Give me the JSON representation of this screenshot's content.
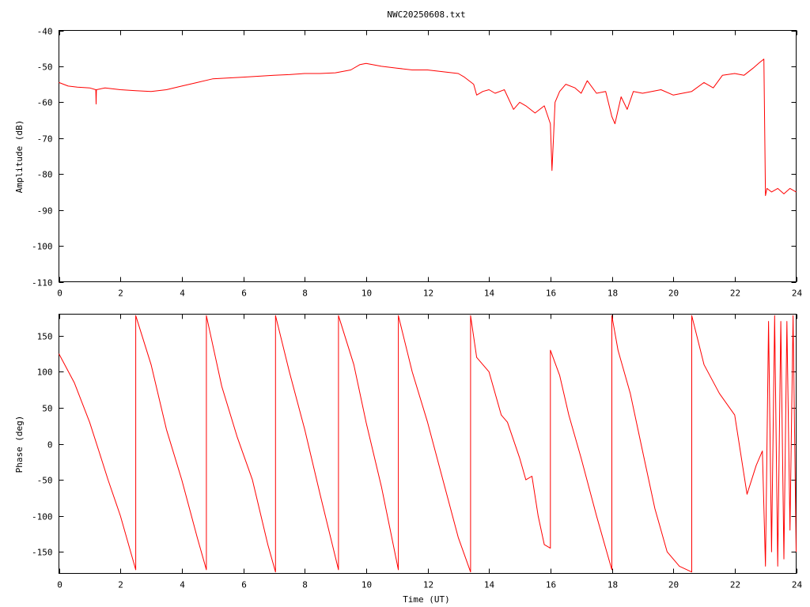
{
  "title": "NWC20250608.txt",
  "colors": {
    "trace": "#ff0000",
    "axes": "#000000",
    "background": "#ffffff"
  },
  "chart_data": [
    {
      "type": "line",
      "title": "NWC20250608.txt",
      "xlabel": "",
      "ylabel": "Amplitude (dB)",
      "xlim": [
        0,
        24
      ],
      "ylim": [
        -110,
        -40
      ],
      "x_ticks": [
        "0",
        "2",
        "4",
        "6",
        "8",
        "10",
        "12",
        "14",
        "16",
        "18",
        "20",
        "22",
        "24"
      ],
      "y_ticks": [
        "-40",
        "-50",
        "-60",
        "-70",
        "-80",
        "-90",
        "-100",
        "-110"
      ],
      "grid": false,
      "series": [
        {
          "x": [
            0,
            0.3,
            0.6,
            1.0,
            1.2,
            1.21,
            1.22,
            1.5,
            2.0,
            2.5,
            3.0,
            3.5,
            4.0,
            4.5,
            5.0,
            6.0,
            7.0,
            7.5,
            8.0,
            8.5,
            9.0,
            9.5,
            9.8,
            10.0,
            10.5,
            11.0,
            11.5,
            12.0,
            12.5,
            13.0,
            13.2,
            13.5,
            13.6,
            13.8,
            14.0,
            14.2,
            14.5,
            14.8,
            15.0,
            15.2,
            15.5,
            15.8,
            16.0,
            16.05,
            16.1,
            16.15,
            16.3,
            16.5,
            16.8,
            17.0,
            17.2,
            17.5,
            17.8,
            18.0,
            18.1,
            18.3,
            18.5,
            18.7,
            19.0,
            19.3,
            19.6,
            20.0,
            20.3,
            20.6,
            21.0,
            21.3,
            21.6,
            22.0,
            22.3,
            22.6,
            22.8,
            22.95,
            23.0,
            23.05,
            23.2,
            23.4,
            23.6,
            23.8,
            24.0
          ],
          "values": [
            -54.5,
            -55.5,
            -55.8,
            -56.0,
            -56.5,
            -60.5,
            -56.5,
            -56.0,
            -56.5,
            -56.8,
            -57.0,
            -56.5,
            -55.5,
            -54.5,
            -53.5,
            -53.0,
            -52.5,
            -52.3,
            -52.0,
            -52.0,
            -51.8,
            -51.0,
            -49.5,
            -49.2,
            -50.0,
            -50.5,
            -51.0,
            -51.0,
            -51.5,
            -52.0,
            -53.0,
            -55.0,
            -58.0,
            -57.0,
            -56.5,
            -57.5,
            -56.5,
            -62.0,
            -60.0,
            -61.0,
            -63.0,
            -61.0,
            -66.0,
            -79.0,
            -70.0,
            -60.0,
            -57.0,
            -55.0,
            -56.0,
            -57.5,
            -54.0,
            -57.5,
            -57.0,
            -64.0,
            -66.0,
            -58.5,
            -62.0,
            -57.0,
            -57.5,
            -57.0,
            -56.5,
            -58.0,
            -57.5,
            -57.0,
            -54.5,
            -56.0,
            -52.5,
            -52.0,
            -52.5,
            -50.5,
            -49.0,
            -48.0,
            -86.0,
            -84.0,
            -85.0,
            -84.0,
            -85.5,
            -84.0,
            -85.0
          ]
        }
      ]
    },
    {
      "type": "line",
      "title": "",
      "xlabel": "Time (UT)",
      "ylabel": "Phase (deg)",
      "xlim": [
        0,
        24
      ],
      "ylim": [
        -180,
        180
      ],
      "x_ticks": [
        "0",
        "2",
        "4",
        "6",
        "8",
        "10",
        "12",
        "14",
        "16",
        "18",
        "20",
        "22",
        "24"
      ],
      "y_ticks": [
        "150",
        "100",
        "50",
        "0",
        "-50",
        "-100",
        "-150"
      ],
      "grid": false,
      "series": [
        {
          "x": [
            0,
            0.5,
            1.0,
            1.3,
            1.6,
            2.0,
            2.5,
            2.5,
            3.0,
            3.5,
            4.0,
            4.5,
            4.8,
            4.8,
            5.3,
            5.8,
            6.3,
            6.8,
            7.05,
            7.05,
            7.5,
            8.0,
            8.5,
            9.1,
            9.1,
            9.6,
            10.0,
            10.5,
            11.05,
            11.05,
            11.5,
            12.0,
            12.5,
            13.0,
            13.4,
            13.4,
            13.6,
            14.0,
            14.4,
            14.6,
            15.0,
            15.2,
            15.4,
            15.6,
            15.8,
            16.0,
            16.0,
            16.3,
            16.6,
            17.0,
            17.5,
            17.9,
            18.0,
            18.0,
            18.2,
            18.6,
            19.0,
            19.4,
            19.8,
            20.2,
            20.6,
            20.6,
            21.0,
            21.5,
            22.0,
            22.4,
            22.7,
            22.9,
            23.0,
            23.1,
            23.2,
            23.3,
            23.4,
            23.5,
            23.6,
            23.7,
            23.8,
            23.9,
            24.0
          ],
          "values": [
            125,
            85,
            30,
            -10,
            -50,
            -100,
            -175,
            178,
            110,
            20,
            -50,
            -130,
            -175,
            178,
            80,
            10,
            -50,
            -140,
            -178,
            178,
            100,
            20,
            -70,
            -175,
            178,
            110,
            30,
            -60,
            -175,
            178,
            100,
            30,
            -50,
            -130,
            -178,
            178,
            120,
            100,
            40,
            30,
            -20,
            -50,
            -45,
            -100,
            -140,
            -145,
            130,
            95,
            40,
            -20,
            -100,
            -160,
            -175,
            178,
            130,
            70,
            -10,
            -90,
            -150,
            -170,
            -178,
            178,
            110,
            70,
            40,
            -70,
            -30,
            -10,
            -170,
            170,
            -150,
            178,
            -170,
            170,
            -160,
            170,
            -120,
            178,
            -150
          ]
        }
      ]
    }
  ]
}
